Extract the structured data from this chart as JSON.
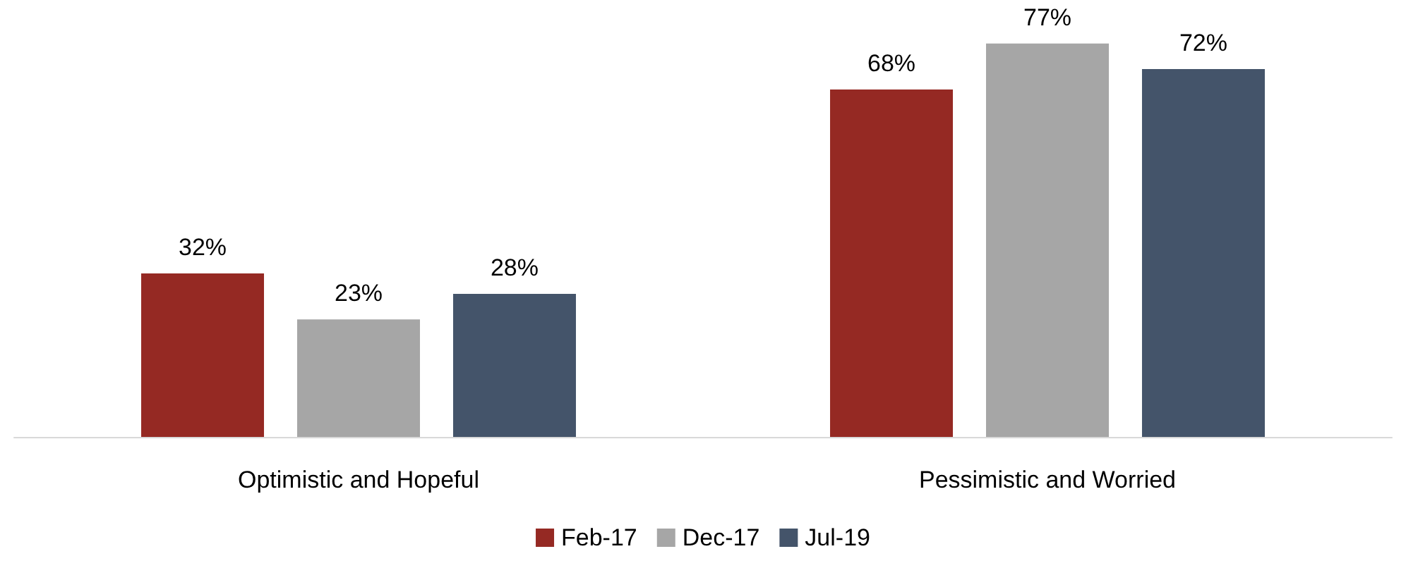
{
  "chart_data": {
    "type": "bar",
    "categories": [
      "Optimistic and Hopeful",
      "Pessimistic and Worried"
    ],
    "series": [
      {
        "name": "Feb-17",
        "color": "#952923",
        "values": [
          32,
          68
        ],
        "value_labels": [
          "32%",
          "68%"
        ]
      },
      {
        "name": "Dec-17",
        "color": "#a6a6a6",
        "values": [
          23,
          77
        ],
        "value_labels": [
          "23%",
          "77%"
        ]
      },
      {
        "name": "Jul-19",
        "color": "#44546a",
        "values": [
          28,
          72
        ],
        "value_labels": [
          "28%",
          "72%"
        ]
      }
    ],
    "legend": "bottom"
  }
}
